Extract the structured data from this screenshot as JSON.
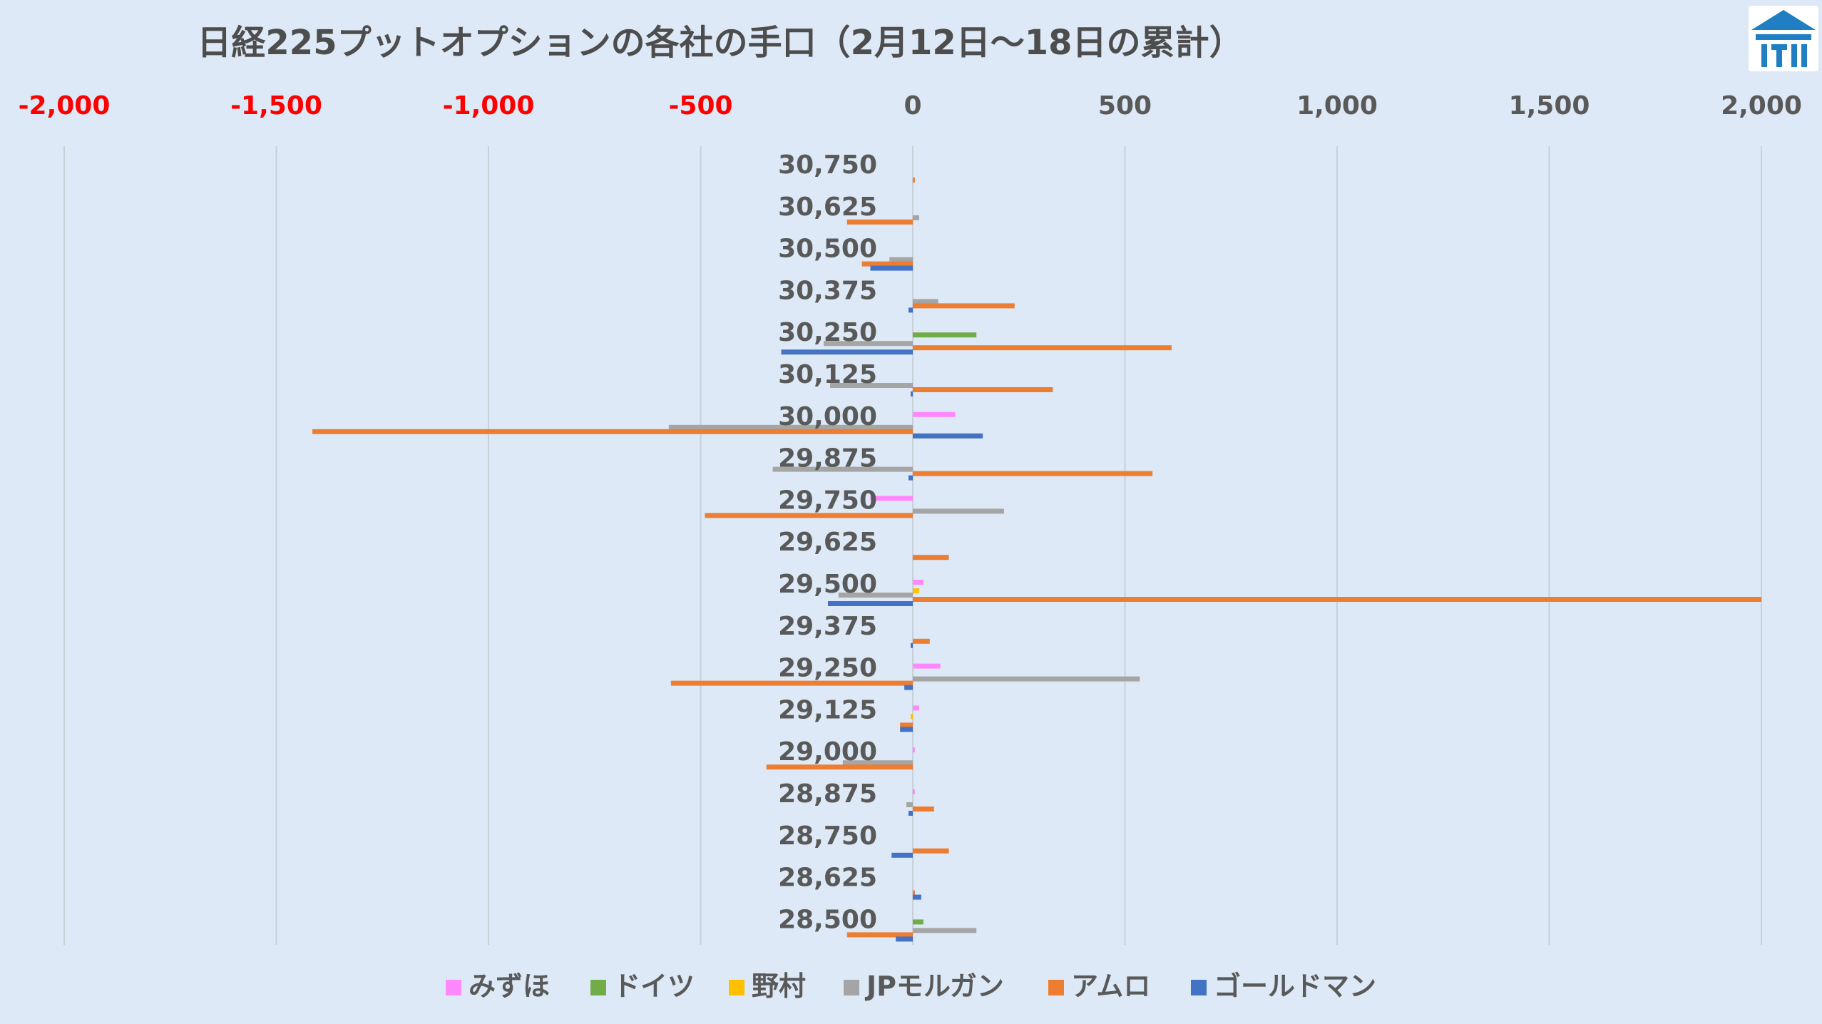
{
  "chart_data": {
    "type": "bar",
    "orientation": "horizontal",
    "title": "日経225プットオプションの各社の手口（2月12日～18日の累計）",
    "xlim": [
      -2000,
      2000
    ],
    "x_ticks": [
      -2000,
      -1500,
      -1000,
      -500,
      0,
      500,
      1000,
      1500,
      2000
    ],
    "x_tick_labels": [
      "-2,000",
      "-1,500",
      "-1,000",
      "-500",
      "0",
      "500",
      "1,000",
      "1,500",
      "2,000"
    ],
    "negative_tick_color": "#ff0000",
    "positive_tick_color": "#595959",
    "grid": true,
    "legend_position": "bottom",
    "categories": [
      "30,750",
      "30,625",
      "30,500",
      "30,375",
      "30,250",
      "30,125",
      "30,000",
      "29,875",
      "29,750",
      "29,625",
      "29,500",
      "29,375",
      "29,250",
      "29,125",
      "29,000",
      "28,875",
      "28,750",
      "28,625",
      "28,500"
    ],
    "series": [
      {
        "name": "みずほ",
        "color": "#ff88ff",
        "values": [
          0,
          0,
          0,
          0,
          0,
          0,
          100,
          0,
          -100,
          0,
          25,
          0,
          65,
          15,
          5,
          5,
          0,
          0,
          0
        ]
      },
      {
        "name": "ドイツ",
        "color": "#70ad47",
        "values": [
          0,
          0,
          0,
          0,
          150,
          0,
          0,
          0,
          0,
          0,
          0,
          0,
          0,
          0,
          0,
          0,
          0,
          0,
          25
        ]
      },
      {
        "name": "野村",
        "color": "#ffc000",
        "values": [
          0,
          0,
          0,
          0,
          0,
          0,
          0,
          0,
          0,
          0,
          15,
          0,
          0,
          -5,
          0,
          0,
          0,
          0,
          0
        ]
      },
      {
        "name": "JPモルガン",
        "color": "#a5a5a5",
        "values": [
          0,
          15,
          -55,
          60,
          -210,
          -195,
          -575,
          -330,
          215,
          0,
          -175,
          0,
          535,
          0,
          -165,
          -15,
          0,
          0,
          150
        ]
      },
      {
        "name": "アムロ",
        "color": "#ed7d31",
        "values": [
          5,
          -155,
          -120,
          240,
          610,
          330,
          -1415,
          565,
          -490,
          85,
          2000,
          40,
          -570,
          -30,
          -345,
          50,
          85,
          5,
          -155
        ]
      },
      {
        "name": "ゴールドマン",
        "color": "#4472c4",
        "values": [
          0,
          0,
          -100,
          -10,
          -310,
          -5,
          165,
          -10,
          0,
          0,
          -200,
          -5,
          -20,
          -30,
          0,
          -10,
          -50,
          20,
          -40
        ]
      }
    ]
  },
  "logo": {
    "name": "logo-icon",
    "color": "#1f7fc2"
  }
}
